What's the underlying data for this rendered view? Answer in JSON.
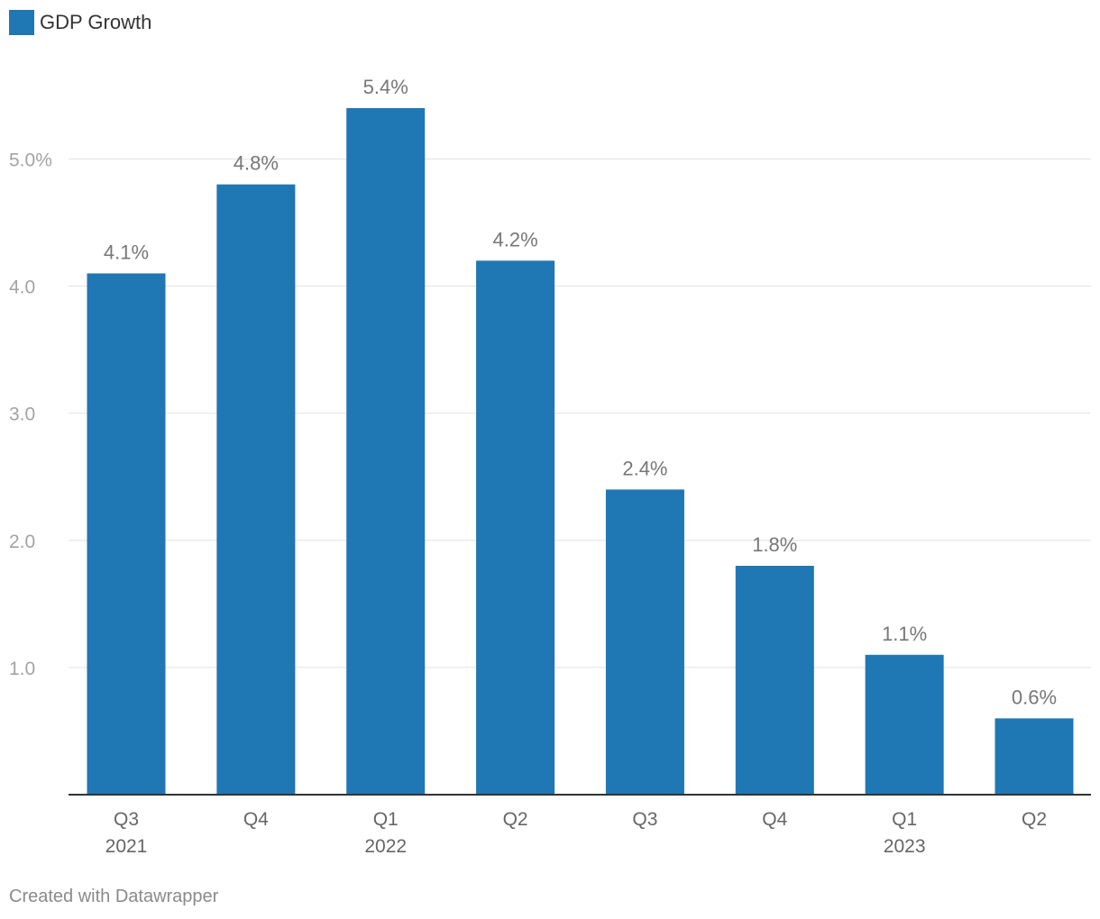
{
  "chart_data": {
    "type": "bar",
    "categories": [
      "Q3 2021",
      "Q4 2021",
      "Q1 2022",
      "Q2 2022",
      "Q3 2022",
      "Q4 2022",
      "Q1 2023",
      "Q2 2023"
    ],
    "x_tick_labels": [
      {
        "quarter": "Q3",
        "year": "2021"
      },
      {
        "quarter": "Q4",
        "year": ""
      },
      {
        "quarter": "Q1",
        "year": "2022"
      },
      {
        "quarter": "Q2",
        "year": ""
      },
      {
        "quarter": "Q3",
        "year": ""
      },
      {
        "quarter": "Q4",
        "year": ""
      },
      {
        "quarter": "Q1",
        "year": "2023"
      },
      {
        "quarter": "Q2",
        "year": ""
      }
    ],
    "series": [
      {
        "name": "GDP Growth",
        "values": [
          4.1,
          4.8,
          5.4,
          4.2,
          2.4,
          1.8,
          1.1,
          0.6
        ],
        "color": "#1f77b4"
      }
    ],
    "data_labels": [
      "4.1%",
      "4.8%",
      "5.4%",
      "4.2%",
      "2.4%",
      "1.8%",
      "1.1%",
      "0.6%"
    ],
    "y_ticks": [
      {
        "value": 1,
        "label": "1.0"
      },
      {
        "value": 2,
        "label": "2.0"
      },
      {
        "value": 3,
        "label": "3.0"
      },
      {
        "value": 4,
        "label": "4.0"
      },
      {
        "value": 5,
        "label": "5.0%"
      }
    ],
    "ylim": [
      0,
      5.4
    ],
    "grid": true,
    "legend": "top-left",
    "title": "",
    "xlabel": "",
    "ylabel": ""
  },
  "legend": {
    "label": "GDP Growth",
    "color": "#1f77b4"
  },
  "footer": {
    "credit": "Created with Datawrapper"
  }
}
